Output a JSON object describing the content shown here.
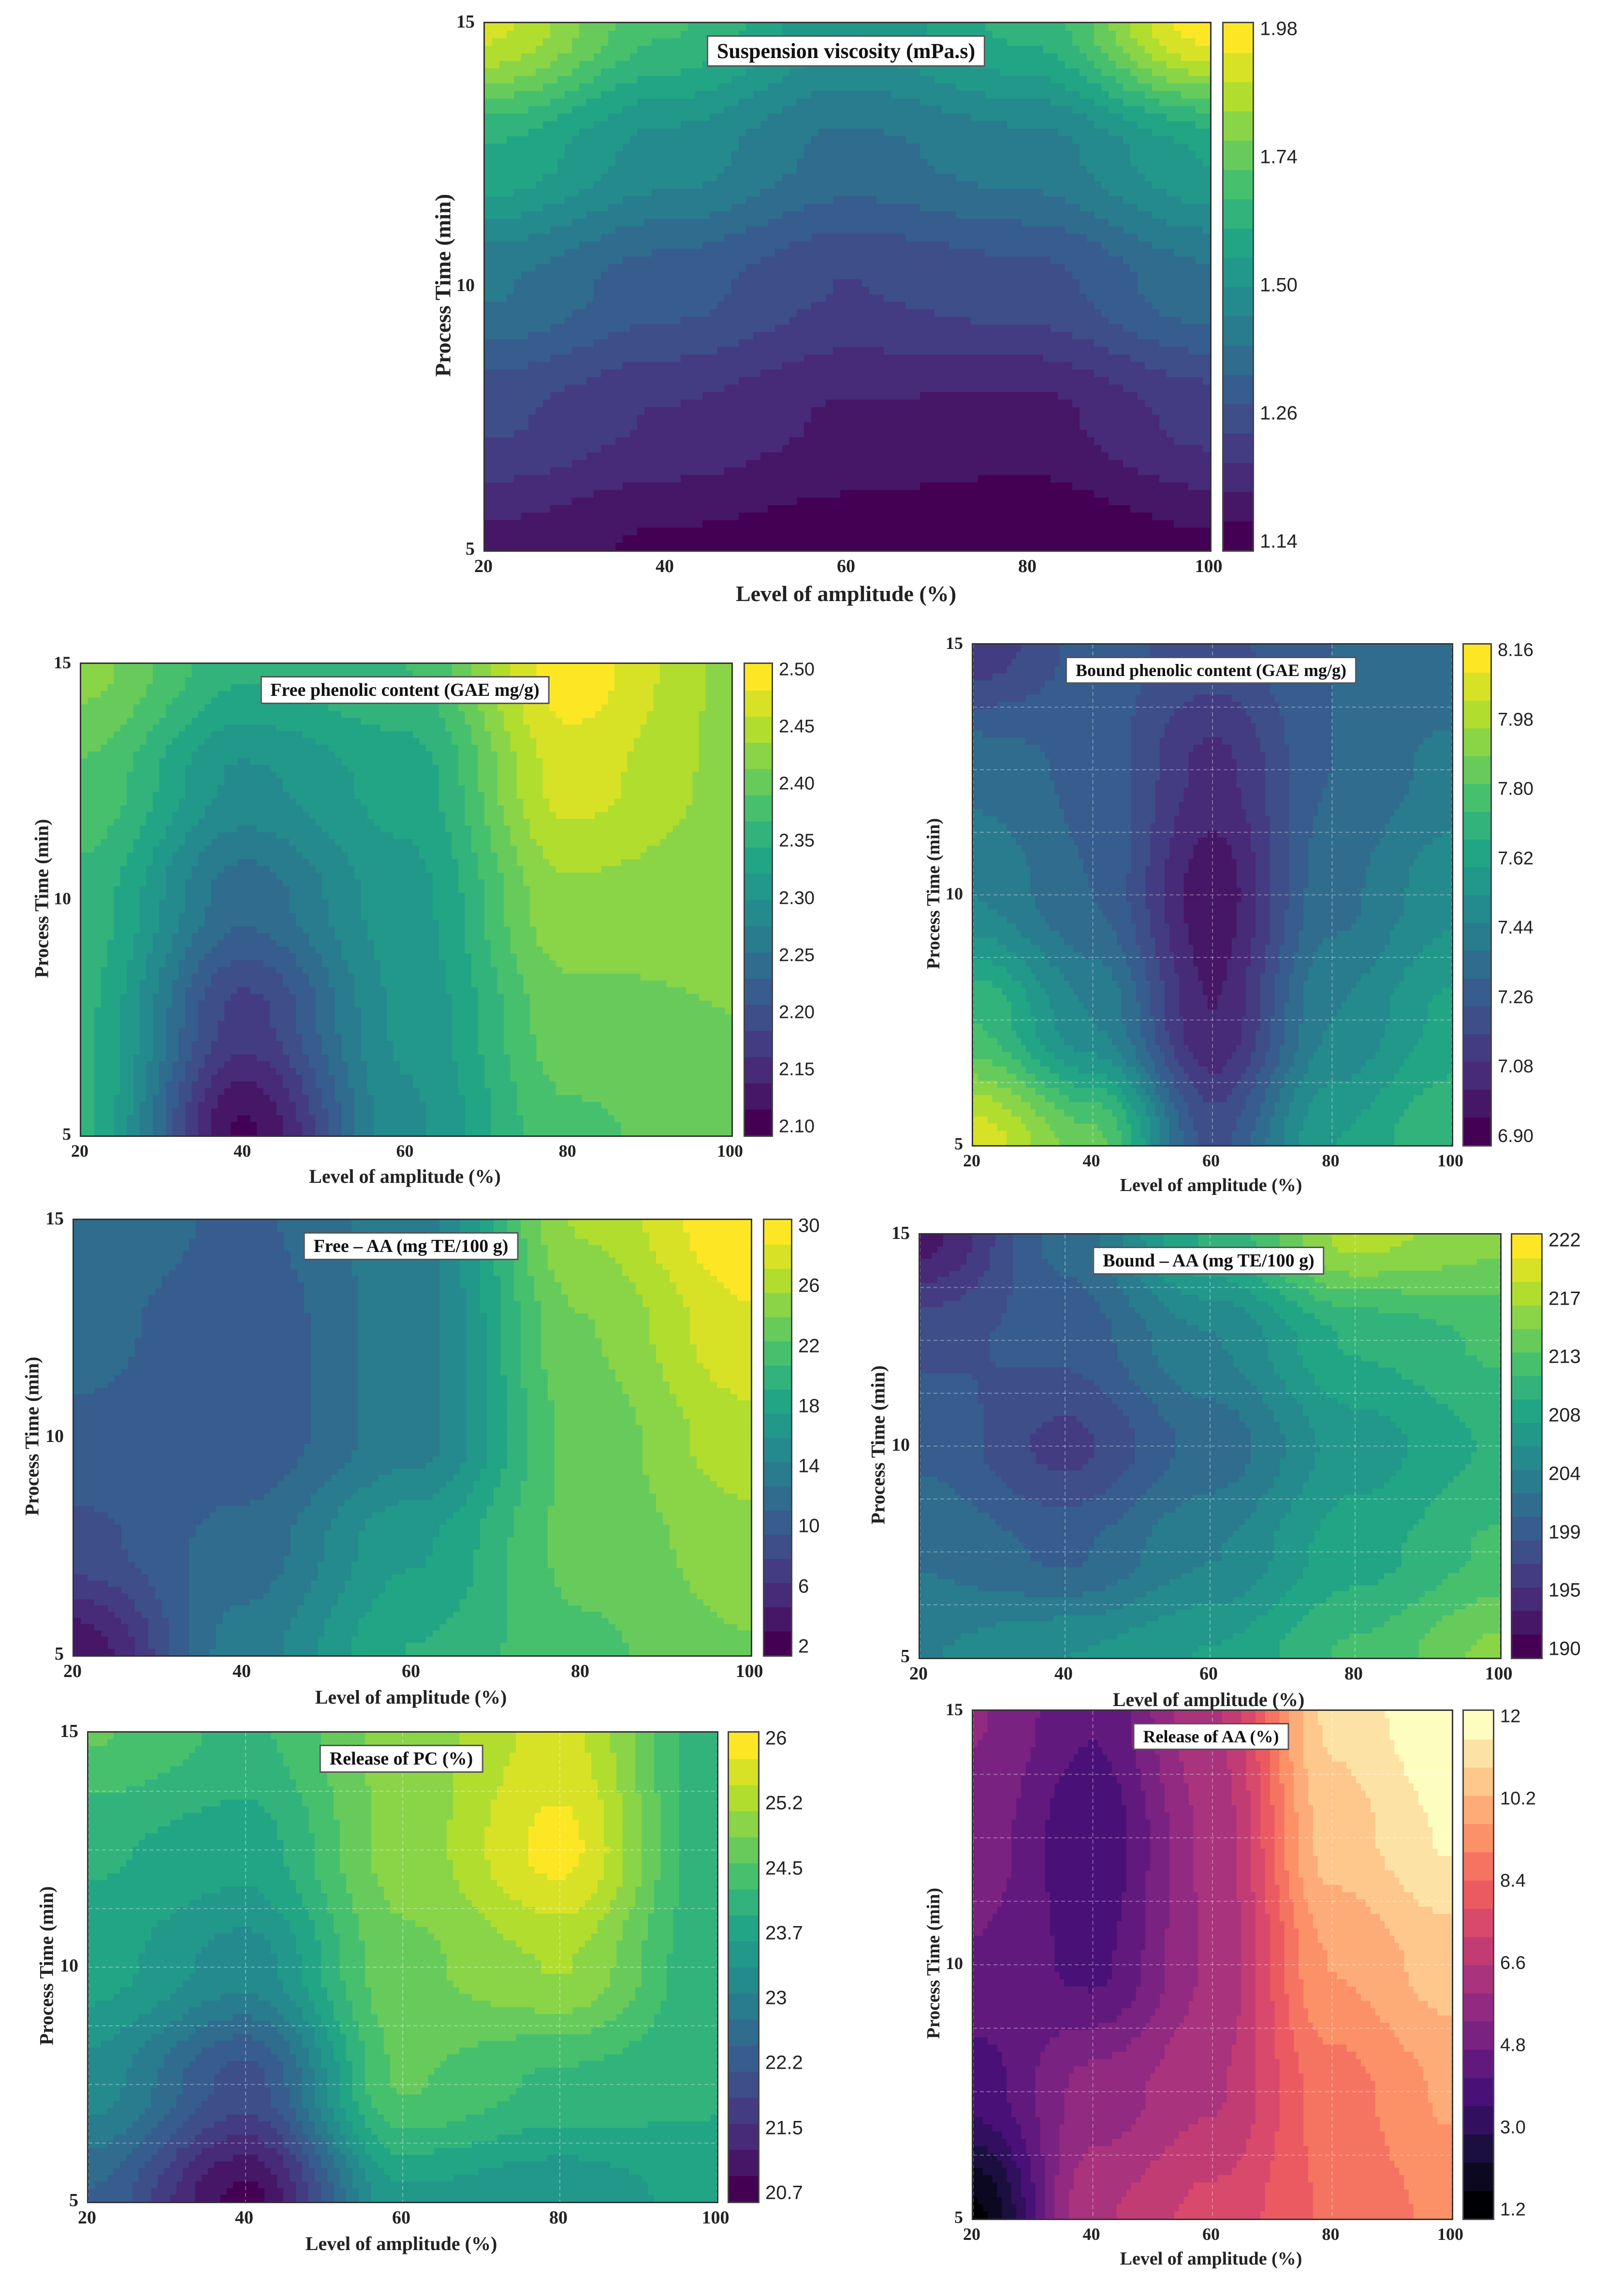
{
  "chart_data": [
    {
      "type": "heatmap",
      "title": "Suspension viscosity (mPa.s)",
      "xlabel": "Level of amplitude (%)",
      "ylabel": "Process Time (min)",
      "x_ticks": [
        "20",
        "40",
        "60",
        "80",
        "100"
      ],
      "y_ticks": [
        "5",
        "10",
        "15"
      ],
      "xlim": [
        20,
        100
      ],
      "ylim": [
        5,
        15
      ],
      "colormap": "viridis",
      "colorbar_ticks": [
        "1.14",
        "1.26",
        "1.50",
        "1.74",
        "1.98"
      ],
      "colorbar_range": [
        1.14,
        2.0
      ],
      "grid": false,
      "x": [
        20,
        40,
        60,
        80,
        100
      ],
      "y": [
        5,
        7.5,
        10,
        12.5,
        15
      ],
      "z": [
        [
          1.22,
          1.18,
          1.16,
          1.14,
          1.18
        ],
        [
          1.34,
          1.28,
          1.23,
          1.22,
          1.3
        ],
        [
          1.48,
          1.4,
          1.33,
          1.36,
          1.46
        ],
        [
          1.66,
          1.55,
          1.46,
          1.5,
          1.62
        ],
        [
          1.92,
          1.72,
          1.58,
          1.68,
          1.98
        ]
      ]
    },
    {
      "type": "heatmap",
      "title": "Free phenolic content (GAE mg/g)",
      "xlabel": "Level of amplitude (%)",
      "ylabel": "Process Time (min)",
      "x_ticks": [
        "20",
        "40",
        "60",
        "80",
        "100"
      ],
      "y_ticks": [
        "5",
        "10",
        "15"
      ],
      "xlim": [
        20,
        100
      ],
      "ylim": [
        5,
        15
      ],
      "colormap": "viridis",
      "colorbar_ticks": [
        "2.10",
        "2.15",
        "2.20",
        "2.25",
        "2.30",
        "2.35",
        "2.40",
        "2.45",
        "2.50"
      ],
      "colorbar_range": [
        2.08,
        2.53
      ],
      "grid": false,
      "x": [
        20,
        40,
        60,
        80,
        100
      ],
      "y": [
        5,
        7.5,
        10,
        12.5,
        15
      ],
      "z": [
        [
          2.36,
          2.1,
          2.3,
          2.4,
          2.42
        ],
        [
          2.36,
          2.17,
          2.31,
          2.42,
          2.43
        ],
        [
          2.37,
          2.24,
          2.32,
          2.45,
          2.44
        ],
        [
          2.4,
          2.3,
          2.34,
          2.49,
          2.45
        ],
        [
          2.44,
          2.36,
          2.38,
          2.52,
          2.45
        ]
      ]
    },
    {
      "type": "heatmap",
      "title": "Bound phenolic content (GAE mg/g)",
      "xlabel": "Level of amplitude (%)",
      "ylabel": "Process Time (min)",
      "x_ticks": [
        "20",
        "40",
        "60",
        "80",
        "100"
      ],
      "y_ticks": [
        "5",
        "10",
        "15"
      ],
      "xlim": [
        20,
        100
      ],
      "ylim": [
        5,
        15
      ],
      "colormap": "viridis",
      "colorbar_ticks": [
        "6.90",
        "7.08",
        "7.26",
        "7.44",
        "7.62",
        "7.80",
        "7.98",
        "8.16"
      ],
      "colorbar_range": [
        6.85,
        8.2
      ],
      "grid": true,
      "x": [
        20,
        40,
        60,
        80,
        100
      ],
      "y": [
        5,
        7.5,
        10,
        12.5,
        15
      ],
      "z": [
        [
          8.1,
          7.85,
          7.2,
          7.6,
          7.75
        ],
        [
          7.75,
          7.45,
          7.0,
          7.45,
          7.62
        ],
        [
          7.45,
          7.3,
          6.95,
          7.35,
          7.5
        ],
        [
          7.35,
          7.28,
          7.05,
          7.3,
          7.4
        ],
        [
          7.1,
          7.25,
          7.2,
          7.3,
          7.3
        ]
      ]
    },
    {
      "type": "heatmap",
      "title": "Free – AA (mg TE/100 g)",
      "xlabel": "Level of amplitude (%)",
      "ylabel": "Process Time (min)",
      "x_ticks": [
        "20",
        "40",
        "60",
        "80",
        "100"
      ],
      "y_ticks": [
        "5",
        "10",
        "15"
      ],
      "xlim": [
        20,
        100
      ],
      "ylim": [
        5,
        15
      ],
      "colormap": "viridis",
      "colorbar_ticks": [
        "2",
        "6",
        "10",
        "14",
        "18",
        "22",
        "26",
        "30"
      ],
      "colorbar_range": [
        1,
        32
      ],
      "grid": false,
      "x": [
        20,
        40,
        60,
        80,
        100
      ],
      "y": [
        5,
        7.5,
        10,
        12.5,
        15
      ],
      "z": [
        [
          3,
          14,
          20,
          23,
          25
        ],
        [
          9,
          12,
          18,
          24,
          26
        ],
        [
          11,
          10,
          14,
          24,
          28
        ],
        [
          12,
          10,
          14,
          25,
          30
        ],
        [
          13,
          11,
          14,
          27,
          32
        ]
      ]
    },
    {
      "type": "heatmap",
      "title": "Bound – AA (mg TE/100 g)",
      "xlabel": "Level of amplitude (%)",
      "ylabel": "Process Time (min)",
      "x_ticks": [
        "20",
        "40",
        "60",
        "80",
        "100"
      ],
      "y_ticks": [
        "5",
        "10",
        "15"
      ],
      "xlim": [
        20,
        100
      ],
      "ylim": [
        5,
        15
      ],
      "colormap": "viridis",
      "colorbar_ticks": [
        "190",
        "195",
        "199",
        "204",
        "208",
        "213",
        "217",
        "222"
      ],
      "colorbar_range": [
        189,
        223
      ],
      "grid": true,
      "x": [
        20,
        40,
        60,
        80,
        100
      ],
      "y": [
        5,
        7.5,
        10,
        12.5,
        15
      ],
      "z": [
        [
          204,
          206,
          208,
          212,
          216
        ],
        [
          202,
          200,
          204,
          209,
          212
        ],
        [
          200,
          196,
          201,
          207,
          210
        ],
        [
          198,
          199,
          204,
          210,
          212
        ],
        [
          192,
          201,
          210,
          218,
          216
        ]
      ]
    },
    {
      "type": "heatmap",
      "title": "Release of PC (%)",
      "xlabel": "Level of amplitude (%)",
      "ylabel": "Process Time (min)",
      "x_ticks": [
        "20",
        "40",
        "60",
        "80",
        "100"
      ],
      "y_ticks": [
        "5",
        "10",
        "15"
      ],
      "xlim": [
        20,
        100
      ],
      "ylim": [
        5,
        15
      ],
      "colormap": "viridis",
      "colorbar_ticks": [
        "20.7",
        "21.5",
        "22.2",
        "23",
        "23.7",
        "24.5",
        "25.2",
        "26"
      ],
      "colorbar_range": [
        20.6,
        26.1
      ],
      "grid": true,
      "x": [
        20,
        40,
        60,
        80,
        100
      ],
      "y": [
        5,
        7.5,
        10,
        12.5,
        15
      ],
      "z": [
        [
          22.4,
          20.8,
          23.6,
          23.4,
          23.8
        ],
        [
          23.2,
          22.0,
          24.6,
          24.2,
          24.0
        ],
        [
          23.8,
          23.2,
          24.8,
          25.2,
          24.0
        ],
        [
          24.0,
          23.8,
          25.0,
          25.9,
          24.0
        ],
        [
          24.6,
          24.2,
          25.0,
          25.6,
          24.0
        ]
      ]
    },
    {
      "type": "heatmap",
      "title": "Release of AA (%)",
      "xlabel": "Level of amplitude (%)",
      "ylabel": "Process Time (min)",
      "x_ticks": [
        "20",
        "40",
        "60",
        "80",
        "100"
      ],
      "y_ticks": [
        "5",
        "10",
        "15"
      ],
      "xlim": [
        20,
        100
      ],
      "ylim": [
        5,
        15
      ],
      "colormap": "magma",
      "colorbar_ticks": [
        "1.2",
        "3.0",
        "4.8",
        "6.6",
        "8.4",
        "10.2",
        "12"
      ],
      "colorbar_range": [
        1.0,
        13.2
      ],
      "grid": true,
      "x": [
        20,
        40,
        60,
        80,
        100
      ],
      "y": [
        5,
        7.5,
        10,
        12.5,
        15
      ],
      "z": [
        [
          1.5,
          7.0,
          8.0,
          9.2,
          10.0
        ],
        [
          4.0,
          6.0,
          7.0,
          9.5,
          10.6
        ],
        [
          5.0,
          4.2,
          6.5,
          10.5,
          11.5
        ],
        [
          5.5,
          3.8,
          6.6,
          11.5,
          12.6
        ],
        [
          5.8,
          4.5,
          7.0,
          12.0,
          13.2
        ]
      ]
    }
  ]
}
